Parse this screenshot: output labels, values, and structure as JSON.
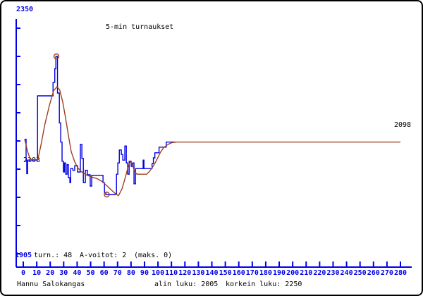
{
  "title": "5-min turnaukset",
  "colors": {
    "axis": "#0000E6",
    "actual_line": "#0000E6",
    "average_line": "#A04020",
    "text": "#000000",
    "background": "#FFFFFF"
  },
  "y_axis": {
    "max_label": "2350",
    "start_label": "2103",
    "end_label": "2098"
  },
  "status": {
    "min_label": "1905",
    "turns": "turn.: 48",
    "a_wins": "A-voitot: 2",
    "maks": "(maks. 0)"
  },
  "footer": {
    "player": "Hannu Salokangas",
    "alin": "alin luku: 2005",
    "korkein": "korkein luku: 2250"
  },
  "chart_data": {
    "type": "line",
    "title": "5-min turnaukset",
    "xlabel": "",
    "ylabel": "",
    "x_range": [
      0,
      280
    ],
    "y_range": [
      1905,
      2350
    ],
    "grid": false,
    "legend": "none",
    "x_tick_values": [
      0,
      10,
      20,
      30,
      40,
      50,
      60,
      70,
      80,
      90,
      100,
      110,
      120,
      130,
      140,
      150,
      160,
      170,
      180,
      190,
      200,
      210,
      220,
      230,
      240,
      250,
      260,
      270,
      280
    ],
    "y_tick_values": [
      2300,
      2250,
      2200,
      2150,
      2100,
      2050,
      2000,
      1950,
      1900
    ],
    "annotations": {
      "start_value": 2103,
      "end_value": 2098,
      "alin_luku": 2005,
      "korkein_luku": 2250
    },
    "series": [
      {
        "name": "rating-per-tournament",
        "color": "#0000E6",
        "step": true,
        "points": [
          [
            1,
            2103
          ],
          [
            2,
            2103
          ],
          [
            2.1,
            2066
          ],
          [
            2.6,
            2042
          ],
          [
            3.2,
            2066
          ],
          [
            9.8,
            2066
          ],
          [
            10.6,
            2180
          ],
          [
            21.5,
            2180
          ],
          [
            22.1,
            2204
          ],
          [
            23,
            2204
          ],
          [
            23.4,
            2228
          ],
          [
            24.2,
            2250
          ],
          [
            24.9,
            2250
          ],
          [
            25.4,
            2185
          ],
          [
            26.2,
            2185
          ],
          [
            26.8,
            2132
          ],
          [
            27.8,
            2098
          ],
          [
            28.8,
            2064
          ],
          [
            29.8,
            2045
          ],
          [
            30.5,
            2061
          ],
          [
            31.5,
            2041
          ],
          [
            32.5,
            2058
          ],
          [
            33.5,
            2035
          ],
          [
            34.6,
            2026
          ],
          [
            35.2,
            2051
          ],
          [
            36.8,
            2048
          ],
          [
            38.2,
            2056
          ],
          [
            40.3,
            2045
          ],
          [
            42.4,
            2094
          ],
          [
            43.5,
            2069
          ],
          [
            44.6,
            2026
          ],
          [
            46.1,
            2048
          ],
          [
            47.6,
            2040
          ],
          [
            49.7,
            2020
          ],
          [
            50.8,
            2039
          ],
          [
            58.1,
            2039
          ],
          [
            59.2,
            2026
          ],
          [
            60.3,
            2008
          ],
          [
            61.3,
            2005
          ],
          [
            68.6,
            2005
          ],
          [
            69.2,
            2041
          ],
          [
            70.2,
            2061
          ],
          [
            71.3,
            2084
          ],
          [
            72.8,
            2076
          ],
          [
            73.9,
            2066
          ],
          [
            75.4,
            2091
          ],
          [
            76.5,
            2061
          ],
          [
            77.5,
            2041
          ],
          [
            78.6,
            2064
          ],
          [
            80.1,
            2055
          ],
          [
            81.2,
            2061
          ],
          [
            82.2,
            2024
          ],
          [
            83.3,
            2051
          ],
          [
            88.5,
            2051
          ],
          [
            89,
            2066
          ],
          [
            89.6,
            2051
          ],
          [
            94.5,
            2051
          ],
          [
            95.6,
            2060
          ],
          [
            96.6,
            2070
          ],
          [
            97.7,
            2079
          ],
          [
            99.7,
            2079
          ],
          [
            100.8,
            2089
          ],
          [
            105,
            2089
          ],
          [
            106.1,
            2098
          ],
          [
            113.6,
            2098
          ]
        ]
      },
      {
        "name": "smoothed-average",
        "color": "#A04020",
        "step": false,
        "points": [
          [
            1,
            2103
          ],
          [
            2,
            2094
          ],
          [
            3,
            2083
          ],
          [
            4.5,
            2072
          ],
          [
            6,
            2067
          ],
          [
            10.8,
            2067
          ],
          [
            13,
            2091
          ],
          [
            16,
            2129
          ],
          [
            19.5,
            2164
          ],
          [
            22.5,
            2189
          ],
          [
            25,
            2196
          ],
          [
            27,
            2191
          ],
          [
            29.3,
            2169
          ],
          [
            31.4,
            2141
          ],
          [
            33.5,
            2110
          ],
          [
            35.6,
            2081
          ],
          [
            38.2,
            2063
          ],
          [
            40.3,
            2053
          ],
          [
            42.9,
            2046
          ],
          [
            46.6,
            2040
          ],
          [
            50.8,
            2036
          ],
          [
            55,
            2033
          ],
          [
            58.6,
            2028
          ],
          [
            62.3,
            2020
          ],
          [
            65.4,
            2013
          ],
          [
            68.6,
            2006
          ],
          [
            70.7,
            2003
          ],
          [
            73.3,
            2015
          ],
          [
            74.9,
            2028
          ],
          [
            76.4,
            2041
          ],
          [
            78,
            2056
          ],
          [
            79.6,
            2064
          ],
          [
            81.2,
            2056
          ],
          [
            82.7,
            2046
          ],
          [
            84.3,
            2041
          ],
          [
            91.6,
            2041
          ],
          [
            93.7,
            2046
          ],
          [
            95.8,
            2053
          ],
          [
            97.9,
            2061
          ],
          [
            100,
            2071
          ],
          [
            102.1,
            2081
          ],
          [
            104.2,
            2088
          ],
          [
            106.3,
            2092
          ],
          [
            108.4,
            2095
          ],
          [
            110.5,
            2097
          ],
          [
            113.6,
            2098
          ],
          [
            280,
            2098
          ]
        ]
      }
    ],
    "markers": [
      {
        "name": "highest-point",
        "x": 24.6,
        "v": 2250
      },
      {
        "name": "lowest-point",
        "x": 62,
        "v": 2005
      }
    ]
  }
}
